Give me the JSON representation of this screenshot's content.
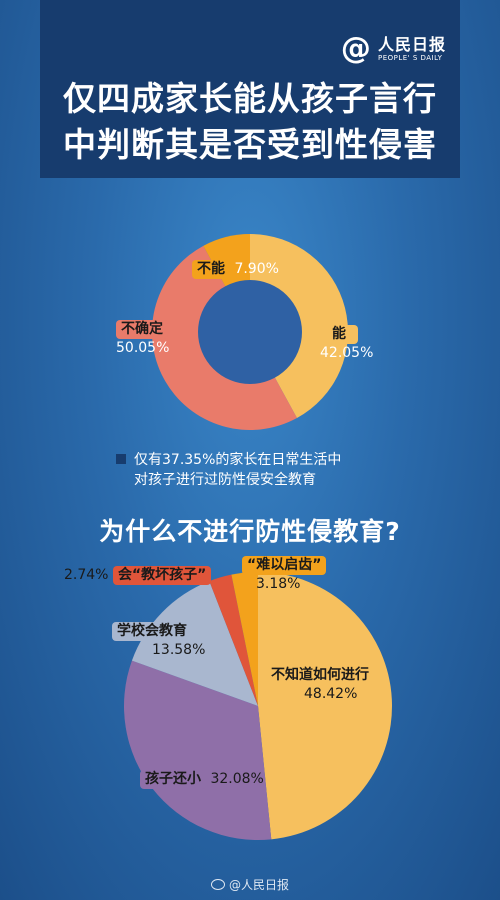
{
  "header": {
    "logo_symbol": "@",
    "logo_name": "人民日报",
    "logo_sub": "PEOPLE' S DAILY",
    "title_line1": "仅四成家长能从孩子言行",
    "title_line2": "中判断其是否受到性侵害"
  },
  "chart_data": [
    {
      "type": "donut",
      "slices": [
        {
          "label": "能",
          "value": 42.05,
          "value_text": "42.05%",
          "color": "#f6c05e"
        },
        {
          "label": "不确定",
          "value": 50.05,
          "value_text": "50.05%",
          "color": "#e97b6a"
        },
        {
          "label": "不能",
          "value": 7.9,
          "value_text": "7.90%",
          "color": "#f3a21c"
        }
      ],
      "hole_color": "#2f61a4",
      "note_line1": "仅有37.35%的家长在日常生活中",
      "note_line2": "对孩子进行过防性侵安全教育"
    },
    {
      "type": "pie",
      "title": "为什么不进行防性侵教育?",
      "slices": [
        {
          "label": "不知道如何进行",
          "value": 48.42,
          "value_text": "48.42%",
          "color": "#f6c05e"
        },
        {
          "label": "孩子还小",
          "value": 32.08,
          "value_text": "32.08%",
          "color": "#8f6fa8"
        },
        {
          "label": "学校会教育",
          "value": 13.58,
          "value_text": "13.58%",
          "color": "#a9b7cf"
        },
        {
          "label": "会“教坏孩子”",
          "value": 2.74,
          "value_text": "2.74%",
          "color": "#e0553a"
        },
        {
          "label": "“难以启齿”",
          "value": 3.18,
          "value_text": "3.18%",
          "color": "#f3a21c"
        }
      ]
    }
  ],
  "footer": {
    "text": "@人民日报"
  }
}
